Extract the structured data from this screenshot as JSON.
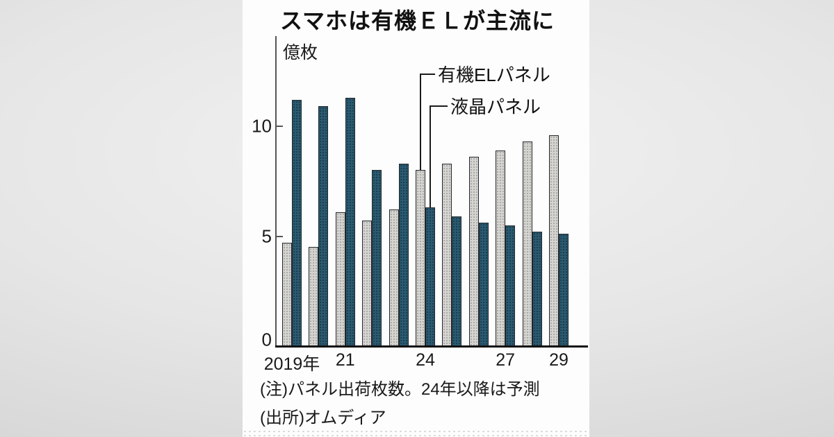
{
  "title": "スマホは有機ＥＬが主流に",
  "notes": {
    "note": "(注)パネル出荷枚数。24年以降は予測",
    "source": "(出所)オムディア"
  },
  "chart_data": {
    "type": "bar",
    "title": "スマホは有機ＥＬが主流に",
    "unit": "億枚",
    "categories": [
      2019,
      2020,
      2021,
      2022,
      2023,
      2024,
      2025,
      2026,
      2027,
      2028,
      2029
    ],
    "series": [
      {
        "name": "有機ELパネル",
        "key": "oled",
        "values": [
          4.7,
          4.5,
          6.1,
          5.7,
          6.2,
          8.0,
          8.3,
          8.6,
          8.9,
          9.3,
          9.6
        ]
      },
      {
        "name": "液晶パネル",
        "key": "lcd",
        "values": [
          11.2,
          10.9,
          11.3,
          8.0,
          8.3,
          6.3,
          5.9,
          5.6,
          5.5,
          5.2,
          5.1
        ]
      }
    ],
    "ylim": [
      0,
      12.6
    ],
    "yticks": [
      {
        "value": 0,
        "label": "0"
      },
      {
        "value": 5,
        "label": "5"
      },
      {
        "value": 10,
        "label": "10"
      }
    ],
    "x_ticks": [
      {
        "label": "2019年",
        "year": 2019
      },
      {
        "label": "21",
        "year": 2021
      },
      {
        "label": "24",
        "year": 2024
      },
      {
        "label": "27",
        "year": 2027
      },
      {
        "label": "29",
        "year": 2029
      }
    ],
    "callouts": [
      {
        "label": "有機ELパネル",
        "series": 0,
        "year": 2024
      },
      {
        "label": "液晶パネル",
        "series": 1,
        "year": 2024
      }
    ],
    "grid": false,
    "legend_position": "callout-top-right",
    "forecast_from": 2024
  },
  "colors": {
    "oled_bar": "#d5d4d0",
    "lcd_bar": "#2b5a70",
    "bar_border": "#20262a",
    "axis": "#555555",
    "baseline": "#111111",
    "card_bg": "#fdfdfe",
    "page_bg": "#dedede",
    "text": "#111111"
  }
}
